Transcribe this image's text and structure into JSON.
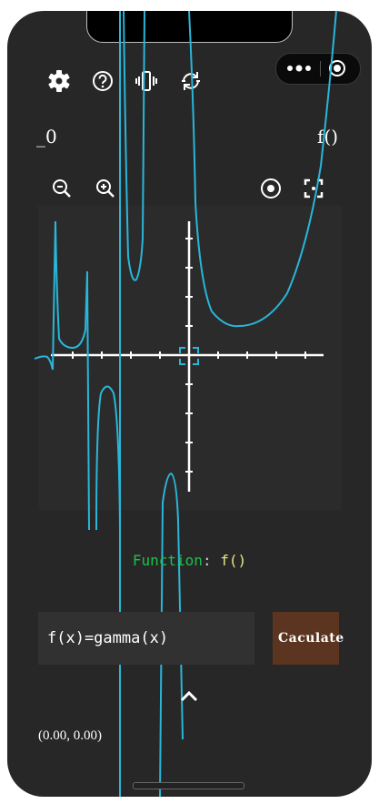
{
  "toolbar": {
    "icons": [
      "gear-icon",
      "help-icon",
      "vibrate-icon",
      "refresh-icon"
    ]
  },
  "capsule": {
    "icons": [
      "more-icon",
      "target-icon"
    ]
  },
  "labels": {
    "left": "_0",
    "right": "f()"
  },
  "zoom_controls": {
    "icons": [
      "zoom-out-icon",
      "zoom-in-icon",
      "locate-icon",
      "fullscreen-icon"
    ]
  },
  "function_display": {
    "keyword": "Function",
    "colon": ": ",
    "value": "f()"
  },
  "input": {
    "value": "f(x)=gamma(x)",
    "placeholder": ""
  },
  "calculate_button": {
    "label": "Caculate"
  },
  "coordinates": "(0.00, 0.00)",
  "colors": {
    "curve": "#29b6d9",
    "axes": "#ffffff",
    "keyword": "#19c24a",
    "value": "#e6e68a",
    "button": "#5c3520"
  },
  "chart_data": {
    "type": "line",
    "function": "gamma(x)",
    "grid": false,
    "series": [
      {
        "values": []
      }
    ]
  }
}
